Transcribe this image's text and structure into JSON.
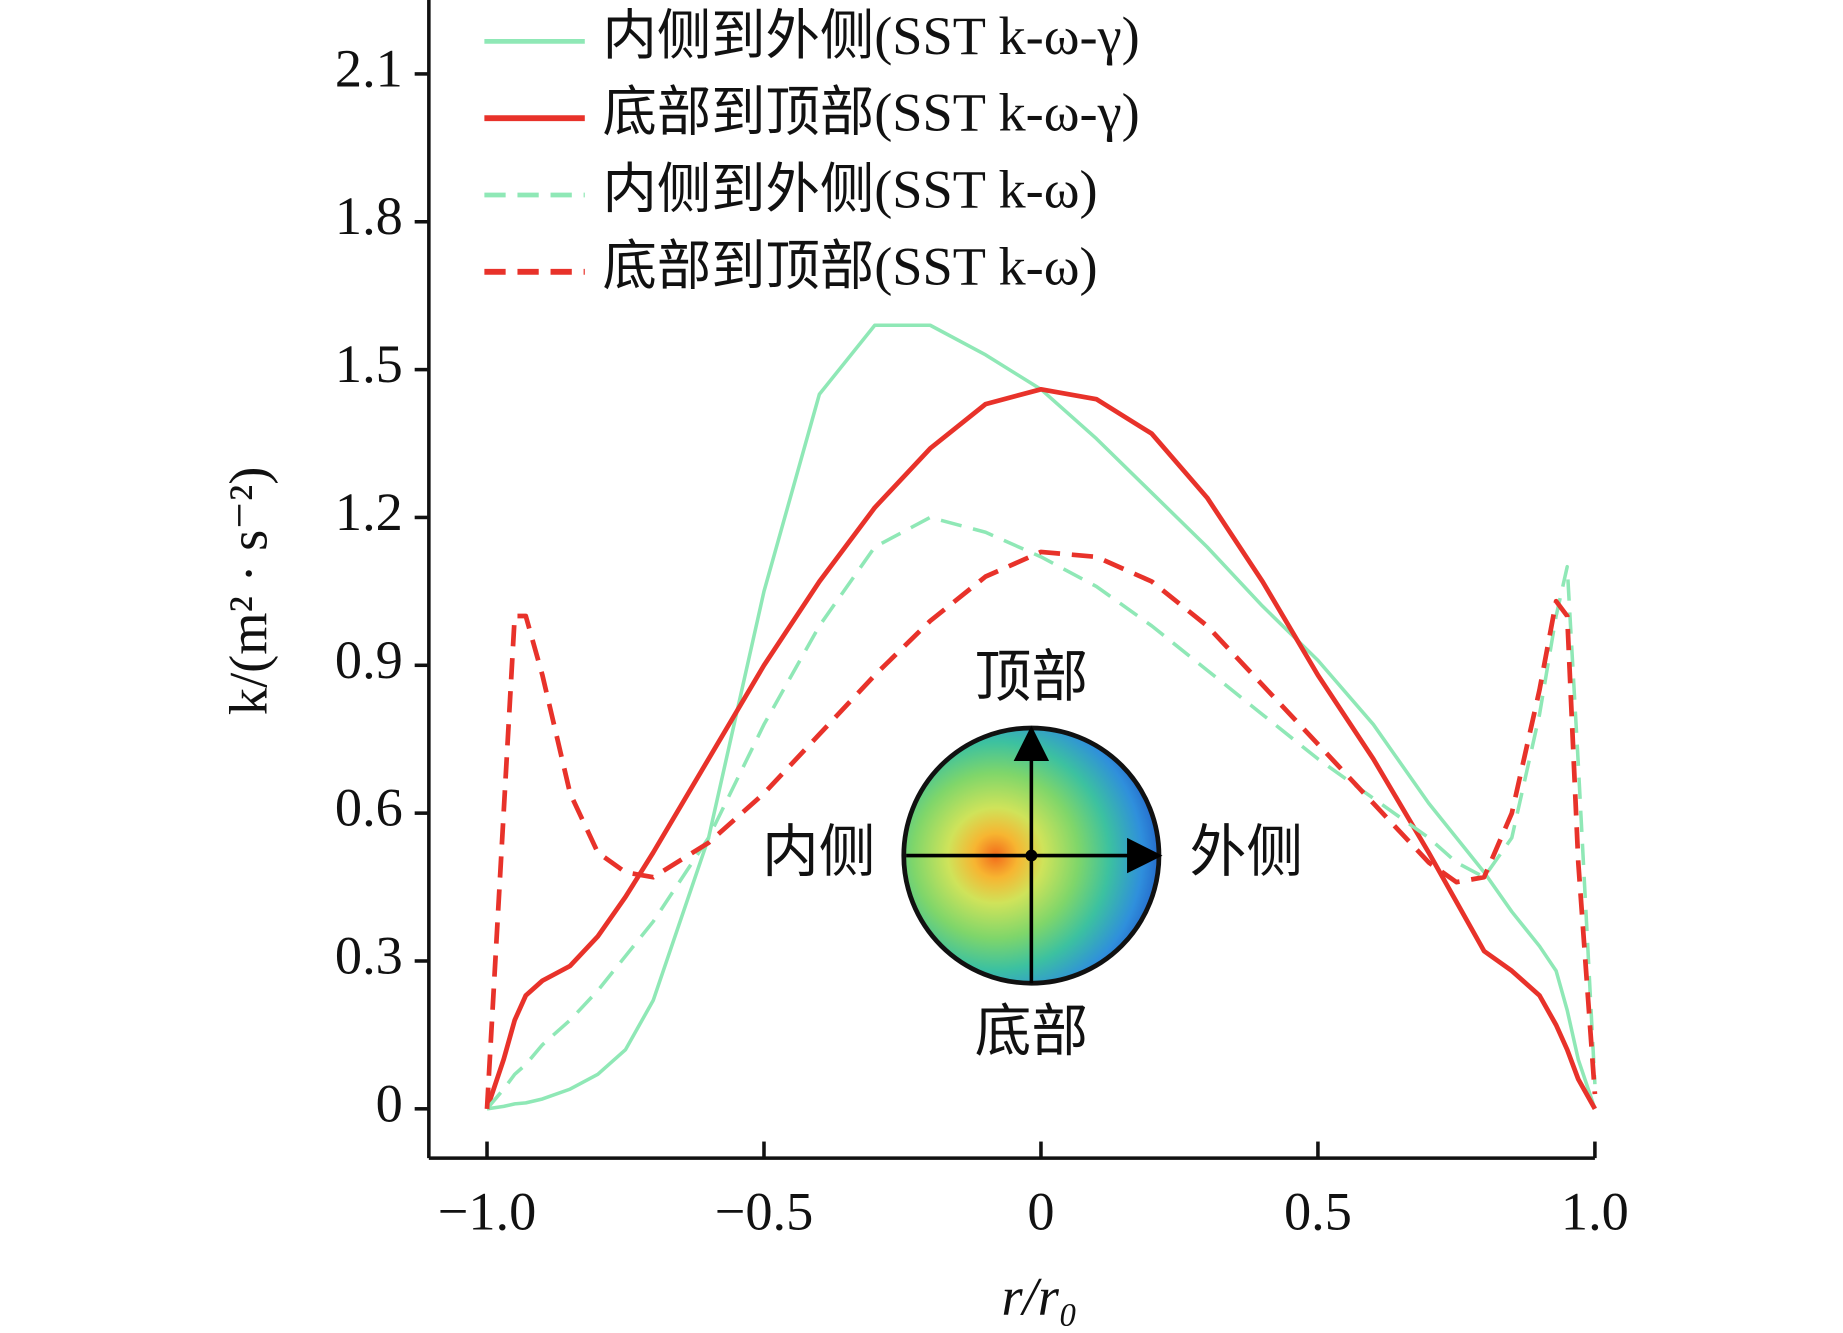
{
  "chart_data": {
    "type": "line",
    "xlabel": "r/r₀",
    "ylabel": "k/(m² · s⁻²)",
    "xlim": [
      -1.105,
      1.0
    ],
    "ylim": [
      -0.1,
      2.25
    ],
    "xticks": [
      {
        "value": -1,
        "label": "−1.0"
      },
      {
        "value": -0.5,
        "label": "−0.5"
      },
      0,
      0.5,
      {
        "value": 1,
        "label": "1.0"
      }
    ],
    "yticks": [
      0,
      0.3,
      0.6,
      0.9,
      1.2,
      1.5,
      1.8,
      2.1
    ],
    "legend": "upper left",
    "x": [
      -1,
      -0.97,
      -0.95,
      -0.93,
      -0.9,
      -0.85,
      -0.8,
      -0.75,
      -0.7,
      -0.6,
      -0.5,
      -0.4,
      -0.3,
      -0.2,
      -0.1,
      0,
      0.1,
      0.2,
      0.3,
      0.4,
      0.5,
      0.6,
      0.7,
      0.75,
      0.8,
      0.85,
      0.9,
      0.93,
      0.95,
      0.97,
      1.0
    ],
    "series": [
      {
        "name": "内侧到外侧(SST k-ω-γ)",
        "color": "#8fe8b6",
        "dash": false,
        "width": 3,
        "values": [
          0,
          0.005,
          0.01,
          0.012,
          0.02,
          0.04,
          0.07,
          0.12,
          0.22,
          0.55,
          1.05,
          1.45,
          1.59,
          1.59,
          1.53,
          1.46,
          1.36,
          1.25,
          1.14,
          1.02,
          0.91,
          0.78,
          0.62,
          0.55,
          0.48,
          0.4,
          0.33,
          0.28,
          0.2,
          0.1,
          0
        ]
      },
      {
        "name": "底部到顶部(SST k-ω-γ)",
        "color": "#e8322a",
        "dash": false,
        "width": 4,
        "values": [
          0,
          0.1,
          0.18,
          0.23,
          0.26,
          0.29,
          0.35,
          0.43,
          0.52,
          0.71,
          0.9,
          1.07,
          1.22,
          1.34,
          1.43,
          1.46,
          1.44,
          1.37,
          1.24,
          1.07,
          0.88,
          0.71,
          0.52,
          0.42,
          0.32,
          0.28,
          0.23,
          0.17,
          0.12,
          0.06,
          0
        ]
      },
      {
        "name": "内侧到外侧(SST k-ω)",
        "color": "#8fe8b6",
        "dash": true,
        "width": 3,
        "values": [
          0,
          0.04,
          0.07,
          0.09,
          0.13,
          0.18,
          0.24,
          0.31,
          0.38,
          0.55,
          0.78,
          0.98,
          1.14,
          1.2,
          1.17,
          1.12,
          1.06,
          0.98,
          0.89,
          0.8,
          0.71,
          0.63,
          0.55,
          0.5,
          0.47,
          0.55,
          0.8,
          1.0,
          1.1,
          0.7,
          0.05
        ]
      },
      {
        "name": "底部到顶部(SST k-ω)",
        "color": "#e8322a",
        "dash": true,
        "width": 4,
        "values": [
          0,
          0.6,
          1.0,
          1.0,
          0.88,
          0.64,
          0.52,
          0.48,
          0.47,
          0.54,
          0.64,
          0.76,
          0.88,
          0.99,
          1.08,
          1.13,
          1.12,
          1.07,
          0.98,
          0.86,
          0.74,
          0.62,
          0.5,
          0.46,
          0.47,
          0.6,
          0.85,
          1.03,
          1.0,
          0.5,
          0.03
        ]
      }
    ],
    "inset": {
      "top": "顶部",
      "left": "内侧",
      "right": "外侧",
      "bottom": "底部"
    }
  }
}
